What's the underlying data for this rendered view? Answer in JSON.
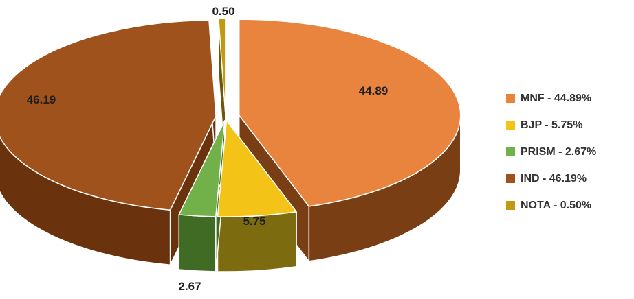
{
  "chart_data": {
    "type": "pie",
    "style": "3d-exploded",
    "slices": [
      {
        "name": "MNF",
        "value": 44.89,
        "label": "44.89",
        "legend": "MNF - 44.89%",
        "color": "#E9843F",
        "side": "#7A3E14"
      },
      {
        "name": "BJP",
        "value": 5.75,
        "label": "5.75",
        "legend": "BJP - 5.75%",
        "color": "#F3C317",
        "side": "#7D6B0F"
      },
      {
        "name": "PRISM",
        "value": 2.67,
        "label": "2.67",
        "legend": "PRISM - 2.67%",
        "color": "#72B04A",
        "side": "#3F6B25"
      },
      {
        "name": "IND",
        "value": 46.19,
        "label": "46.19",
        "legend": "IND - 46.19%",
        "color": "#A0521C",
        "side": "#6A320D"
      },
      {
        "name": "NOTA",
        "value": 0.5,
        "label": "0.50",
        "legend": "NOTA - 0.50%",
        "color": "#C09A10",
        "side": "#6E570A"
      }
    ],
    "legend_position": "right"
  }
}
